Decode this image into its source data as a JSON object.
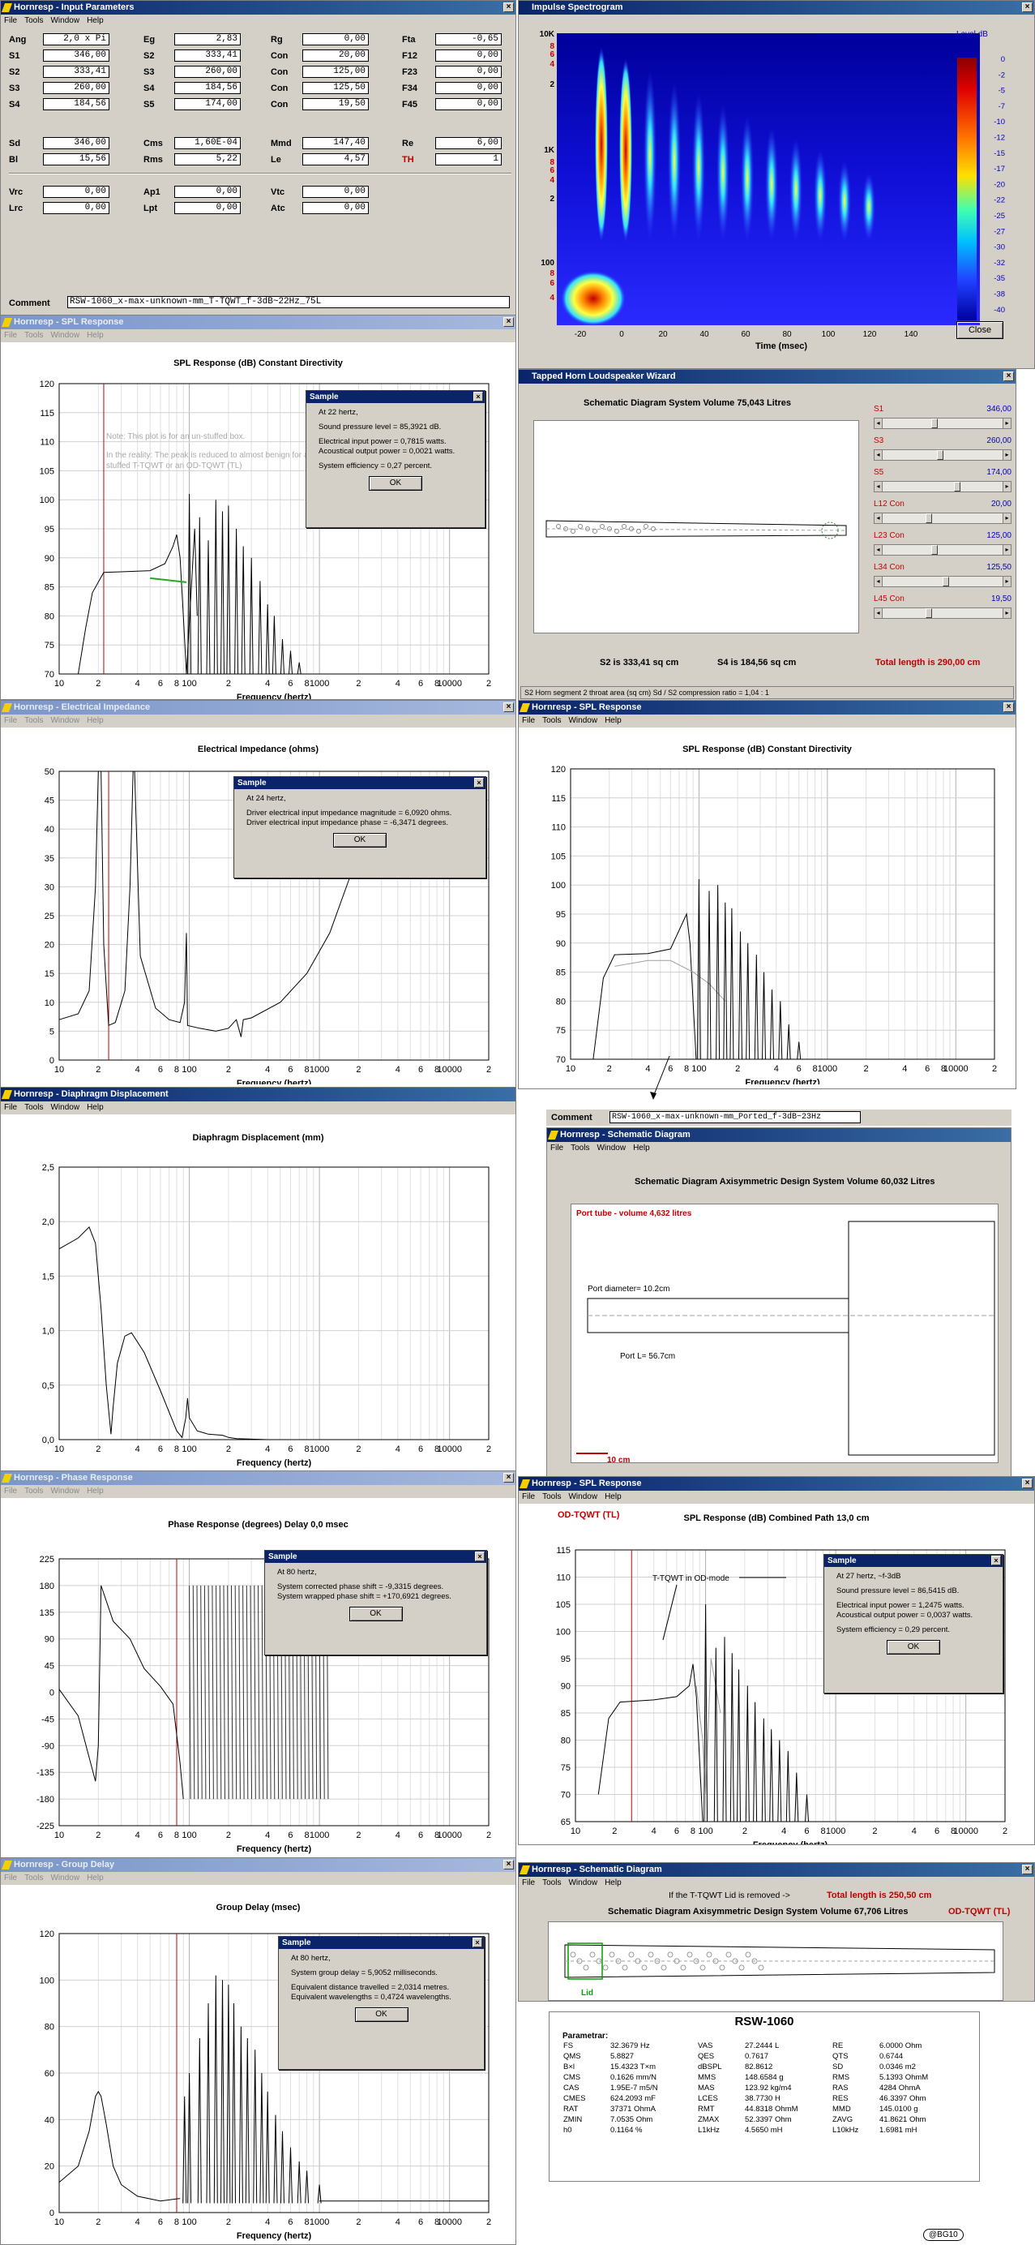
{
  "input_params": {
    "title": "Hornresp - Input Parameters",
    "menu": [
      "File",
      "Tools",
      "Window",
      "Help"
    ],
    "rows": [
      [
        [
          "Ang",
          "2,0 x Pi"
        ],
        [
          "Eg",
          "2,83"
        ],
        [
          "Rg",
          "0,00"
        ],
        [
          "Fta",
          "-0,65"
        ]
      ],
      [
        [
          "S1",
          "346,00"
        ],
        [
          "S2",
          "333,41"
        ],
        [
          "Con",
          "20,00"
        ],
        [
          "F12",
          "0,00"
        ]
      ],
      [
        [
          "S2",
          "333,41"
        ],
        [
          "S3",
          "260,00"
        ],
        [
          "Con",
          "125,00"
        ],
        [
          "F23",
          "0,00"
        ]
      ],
      [
        [
          "S3",
          "260,00"
        ],
        [
          "S4",
          "184,56"
        ],
        [
          "Con",
          "125,50"
        ],
        [
          "F34",
          "0,00"
        ]
      ],
      [
        [
          "S4",
          "184,56"
        ],
        [
          "S5",
          "174,00"
        ],
        [
          "Con",
          "19,50"
        ],
        [
          "F45",
          "0,00"
        ]
      ],
      [
        [
          "Sd",
          "346,00"
        ],
        [
          "Cms",
          "1,60E-04"
        ],
        [
          "Mmd",
          "147,40"
        ],
        [
          "Re",
          "6,00"
        ]
      ],
      [
        [
          "Bl",
          "15,56"
        ],
        [
          "Rms",
          "5,22"
        ],
        [
          "Le",
          "4,57"
        ],
        [
          "TH",
          "1"
        ]
      ],
      [
        [
          "Vrc",
          "0,00"
        ],
        [
          "Ap1",
          "0,00"
        ],
        [
          "Vtc",
          "0,00"
        ]
      ],
      [
        [
          "Lrc",
          "0,00"
        ],
        [
          "Lpt",
          "0,00"
        ],
        [
          "Atc",
          "0,00"
        ]
      ]
    ],
    "comment_label": "Comment",
    "comment": "RSW-1060_x-max-unknown-mm_T-TQWT_f-3dB~22Hz_75L"
  },
  "spectrogram": {
    "title": "Impulse Spectrogram",
    "yticks": [
      "10K",
      "8",
      "6",
      "4",
      "2",
      "1K",
      "8",
      "6",
      "4",
      "2",
      "100",
      "8",
      "6",
      "4"
    ],
    "xticks": [
      "-20",
      "0",
      "20",
      "40",
      "60",
      "80",
      "100",
      "120",
      "140"
    ],
    "xlabel": "Time (msec)",
    "legend_title": "Level  dB",
    "legend": [
      "0",
      "-2",
      "-5",
      "-7",
      "-10",
      "-12",
      "-15",
      "-17",
      "-20",
      "-22",
      "-25",
      "-27",
      "-30",
      "-32",
      "-35",
      "-38",
      "-40"
    ],
    "close": "Close"
  },
  "spl1": {
    "title": "Hornresp - SPL Response",
    "chart_title": "SPL Response (dB)    Constant Directivity",
    "note1": "Note: This plot is for an un-stuffed box.",
    "note2": "In the reality: The peak is reduced to almost benign for a stuffed T-TQWT or an OD-TQWT (TL)",
    "xlabel": "Frequency (hertz)",
    "dialog": {
      "title": "Sample",
      "lines": [
        "At 22 hertz,",
        "Sound pressure level = 85,3921 dB.",
        "Electrical input power = 0,7815 watts.",
        "Acoustical output power = 0,0021 watts.",
        "System efficiency = 0,27 percent."
      ],
      "ok": "OK"
    }
  },
  "wizard": {
    "title": "Tapped Horn Loudspeaker Wizard",
    "header": "Schematic Diagram    System Volume 75,043 Litres",
    "s2": "S2 is 333,41 sq cm",
    "s4": "S4 is 184,56 sq cm",
    "total": "Total length is 290,00 cm",
    "status": "S2   Horn segment 2 throat area  (sq cm)   Sd / S2 compression ratio = 1,04 : 1",
    "sliders": [
      [
        "S1",
        "346,00"
      ],
      [
        "S3",
        "260,00"
      ],
      [
        "S5",
        "174,00"
      ],
      [
        "L12 Con",
        "20,00"
      ],
      [
        "L23 Con",
        "125,00"
      ],
      [
        "L34 Con",
        "125,50"
      ],
      [
        "L45 Con",
        "19,50"
      ]
    ]
  },
  "imp": {
    "title": "Hornresp - Electrical Impedance",
    "chart_title": "Electrical Impedance (ohms)",
    "xlabel": "Frequency (hertz)",
    "dialog": {
      "title": "Sample",
      "lines": [
        "At 24 hertz,",
        "Driver electrical input impedance magnitude = 6,0920 ohms.",
        "Driver electrical input impedance phase = -6,3471 degrees."
      ],
      "ok": "OK"
    }
  },
  "spl2": {
    "title": "Hornresp - SPL Response",
    "chart_title": "SPL Response (dB)    Constant Directivity",
    "xlabel": "Frequency (hertz)"
  },
  "disp": {
    "title": "Hornresp - Diaphragm Displacement",
    "chart_title": "Diaphragm Displacement (mm)",
    "xlabel": "Frequency (hertz)"
  },
  "ported": {
    "comment_label": "Comment",
    "comment": "RSW-1060_x-max-unknown-mm_Ported_f-3dB~23Hz",
    "title": "Hornresp - Schematic Diagram",
    "header": "Schematic Diagram    Axisymmetric Design    System Volume 60,032 Litres",
    "port_tube": "Port tube - volume 4,632 litres",
    "port_dia": "Port diameter=  10.2cm",
    "port_len": "Port L= 56.7cm",
    "scale": "10 cm"
  },
  "phase": {
    "title": "Hornresp - Phase Response",
    "chart_title": "Phase Response (degrees)    Delay 0,0 msec",
    "xlabel": "Frequency (hertz)",
    "dialog": {
      "title": "Sample",
      "lines": [
        "At 80 hertz,",
        "System corrected phase shift = -9,3315 degrees.",
        "System wrapped phase shift = +170,6921 degrees."
      ],
      "ok": "OK"
    }
  },
  "spl3": {
    "title": "Hornresp - SPL Response",
    "label": "OD-TQWT (TL)",
    "chart_title": "SPL Response (dB)    Combined    Path 13,0 cm",
    "annot": "T-TQWT in OD-mode",
    "xlabel": "Frequency (hertz)",
    "dialog": {
      "title": "Sample",
      "lines": [
        "At 27 hertz,      ~f-3dB",
        "Sound pressure level = 86,5415 dB.",
        "Electrical input power = 1,2475 watts.",
        "Acoustical output power = 0,0037 watts.",
        "System efficiency = 0,29 percent."
      ],
      "ok": "OK"
    }
  },
  "gd": {
    "title": "Hornresp - Group Delay",
    "chart_title": "Group Delay (msec)",
    "xlabel": "Frequency (hertz)",
    "dialog": {
      "title": "Sample",
      "lines": [
        "At 80 hertz,",
        "System group delay = 5,9052 milliseconds.",
        "Equivalent distance travelled = 2,0314 metres.",
        "Equivalent wavelengths = 0,4724 wavelengths."
      ],
      "ok": "OK"
    }
  },
  "schem2": {
    "title": "Hornresp - Schematic Diagram",
    "lid_note": "If the T-TQWT Lid is removed ->",
    "total": "Total length is 250,50 cm",
    "header": "Schematic Diagram    Axisymmetric Design    System Volume 67,706 Litres",
    "tag": "OD-TQWT (TL)",
    "lid": "Lid"
  },
  "rsw": {
    "title": "RSW-1060",
    "param_label": "Parametrar:",
    "rows": [
      [
        "FS",
        "32.3679 Hz",
        "VAS",
        "27.2444 L",
        "RE",
        "6.0000 Ohm"
      ],
      [
        "QMS",
        "5.8827",
        "QES",
        "0.7617",
        "QTS",
        "0.6744"
      ],
      [
        "B×l",
        "15.4323 T×m",
        "dBSPL",
        "82.8612",
        "SD",
        "0.0346 m2"
      ],
      [
        "CMS",
        "0.1626 mm/N",
        "MMS",
        "148.6584 g",
        "RMS",
        "5.1393 OhmM"
      ],
      [
        "CAS",
        "1.95E-7 m5/N",
        "MAS",
        "123.92 kg/m4",
        "RAS",
        "4284 OhmA"
      ],
      [
        "CMES",
        "624.2093 mF",
        "LCES",
        "38.7730 H",
        "RES",
        "46.3397 Ohm"
      ],
      [
        "RAT",
        "37371 OhmA",
        "RMT",
        "44.8318 OhmM",
        "MMD",
        "145.0100 g"
      ],
      [
        "ZMIN",
        "7.0535 Ohm",
        "ZMAX",
        "52.3397 Ohm",
        "ZAVG",
        "41.8621 Ohm"
      ],
      [
        "h0",
        "0.1164 %",
        "L1kHz",
        "4.5650 mH",
        "L10kHz",
        "1.6981 mH"
      ]
    ],
    "badge": "@BG10"
  },
  "chart_data": [
    {
      "type": "line",
      "title": "SPL Response (dB)    Constant Directivity",
      "xlabel": "Frequency (hertz)",
      "ylim": [
        70,
        120
      ],
      "yticks": [
        120,
        115,
        110,
        105,
        100,
        95,
        90,
        85,
        80,
        75,
        70
      ],
      "xscale": "log",
      "xticks": [
        "10",
        "2",
        "4",
        "6",
        "8",
        "100",
        "2",
        "4",
        "6",
        "8",
        "1000",
        "2",
        "4",
        "6",
        "8",
        "10000",
        "2"
      ]
    },
    {
      "type": "line",
      "title": "Electrical Impedance (ohms)",
      "ylim": [
        0,
        50
      ],
      "yticks": [
        50,
        45,
        40,
        35,
        30,
        25,
        20,
        15,
        10,
        5,
        0
      ],
      "xscale": "log"
    },
    {
      "type": "line",
      "title": "Diaphragm Displacement (mm)",
      "ylim": [
        0,
        2.5
      ],
      "yticks": [
        "2,5",
        "2,0",
        "1,5",
        "1,0",
        "0,5",
        "0,0"
      ],
      "xscale": "log"
    },
    {
      "type": "line",
      "title": "Phase Response (degrees)",
      "ylim": [
        -225,
        225
      ],
      "yticks": [
        225,
        180,
        135,
        90,
        45,
        0,
        -45,
        -90,
        -135,
        -180,
        -225
      ],
      "xscale": "log"
    },
    {
      "type": "line",
      "title": "SPL Response (dB) Combined",
      "ylim": [
        65,
        115
      ],
      "yticks": [
        115,
        110,
        105,
        100,
        95,
        90,
        85,
        80,
        75,
        70,
        65
      ],
      "xscale": "log"
    },
    {
      "type": "line",
      "title": "Group Delay (msec)",
      "ylim": [
        0,
        120
      ],
      "yticks": [
        120,
        100,
        80,
        60,
        40,
        20,
        0
      ],
      "xscale": "log"
    }
  ]
}
